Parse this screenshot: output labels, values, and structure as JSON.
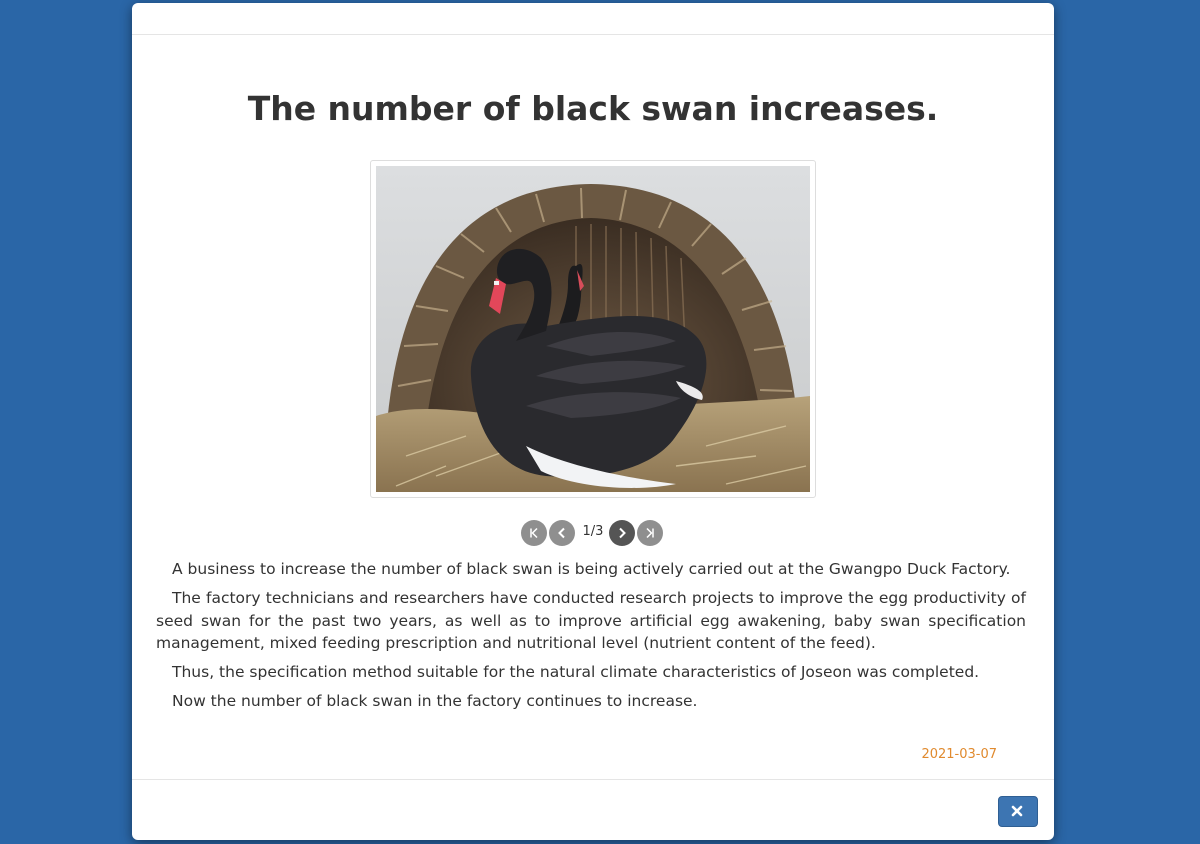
{
  "article": {
    "title": "The number of black swan increases.",
    "paragraphs": [
      "A business to increase the number of black swan is being actively carried out at the Gwangpo Duck Factory.",
      "The factory technicians and researchers have conducted research projects to improve the egg productivity of seed swan for the past two years, as well as to improve artificial egg awakening, baby swan specification management, mixed feeding prescription and nutritional level (nutrient content of the feed).",
      "Thus, the specification method suitable for the natural climate characteristics of Joseon was completed.",
      "Now the number of black swan in the factory continues to increase."
    ],
    "date": "2021-03-07"
  },
  "gallery": {
    "page_indicator": "1/3",
    "current": 1,
    "total": 3,
    "buttons": {
      "first": "first-page-icon",
      "prev": "chevron-left-icon",
      "next": "chevron-right-icon",
      "last": "last-page-icon"
    }
  },
  "footer": {
    "close_icon": "close-icon"
  },
  "colors": {
    "background": "#2a66a7",
    "date": "#e08a2e",
    "close_button": "#3d75b2",
    "title": "#333333"
  }
}
